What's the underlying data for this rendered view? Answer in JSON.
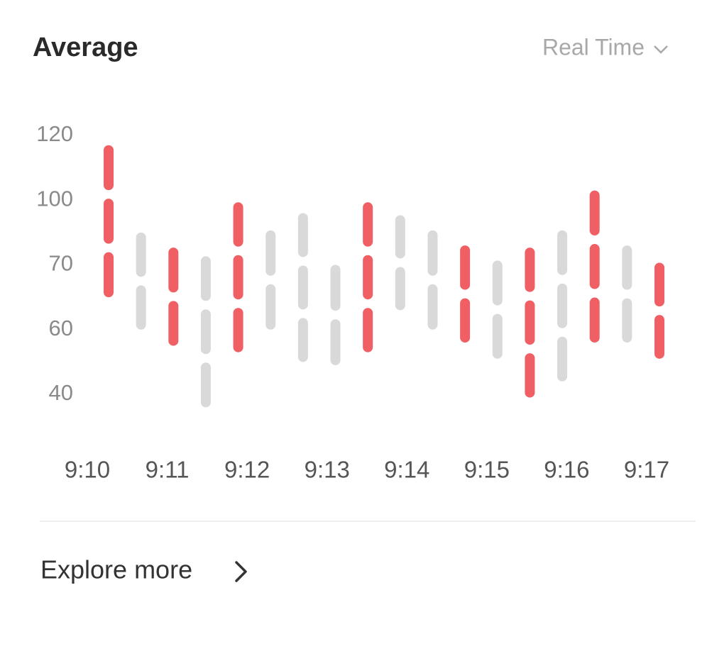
{
  "chart_data": {
    "type": "range-bar",
    "title": "Average",
    "period": "Real Time",
    "yticks": [
      120,
      100,
      70,
      60,
      40
    ],
    "xticks": [
      "9:10",
      "9:11",
      "9:12",
      "9:13",
      "9:14",
      "9:15",
      "9:16",
      "9:17"
    ],
    "high": [
      117,
      85,
      78,
      74,
      99,
      86,
      94,
      70,
      99,
      93,
      86,
      79,
      72,
      78,
      86,
      103,
      79,
      71
    ],
    "low": [
      65,
      60,
      55,
      36,
      53,
      60,
      50,
      49,
      53,
      63,
      60,
      56,
      51,
      39,
      44,
      56,
      56,
      51
    ],
    "colors": [
      "#ef5f63",
      "#d9d9d9",
      "#ef5f63",
      "#d9d9d9",
      "#ef5f63",
      "#d9d9d9",
      "#d9d9d9",
      "#d9d9d9",
      "#ef5f63",
      "#d9d9d9",
      "#d9d9d9",
      "#ef5f63",
      "#d9d9d9",
      "#ef5f63",
      "#d9d9d9",
      "#ef5f63",
      "#d9d9d9",
      "#ef5f63"
    ]
  },
  "footer": {
    "link": "Explore more"
  }
}
